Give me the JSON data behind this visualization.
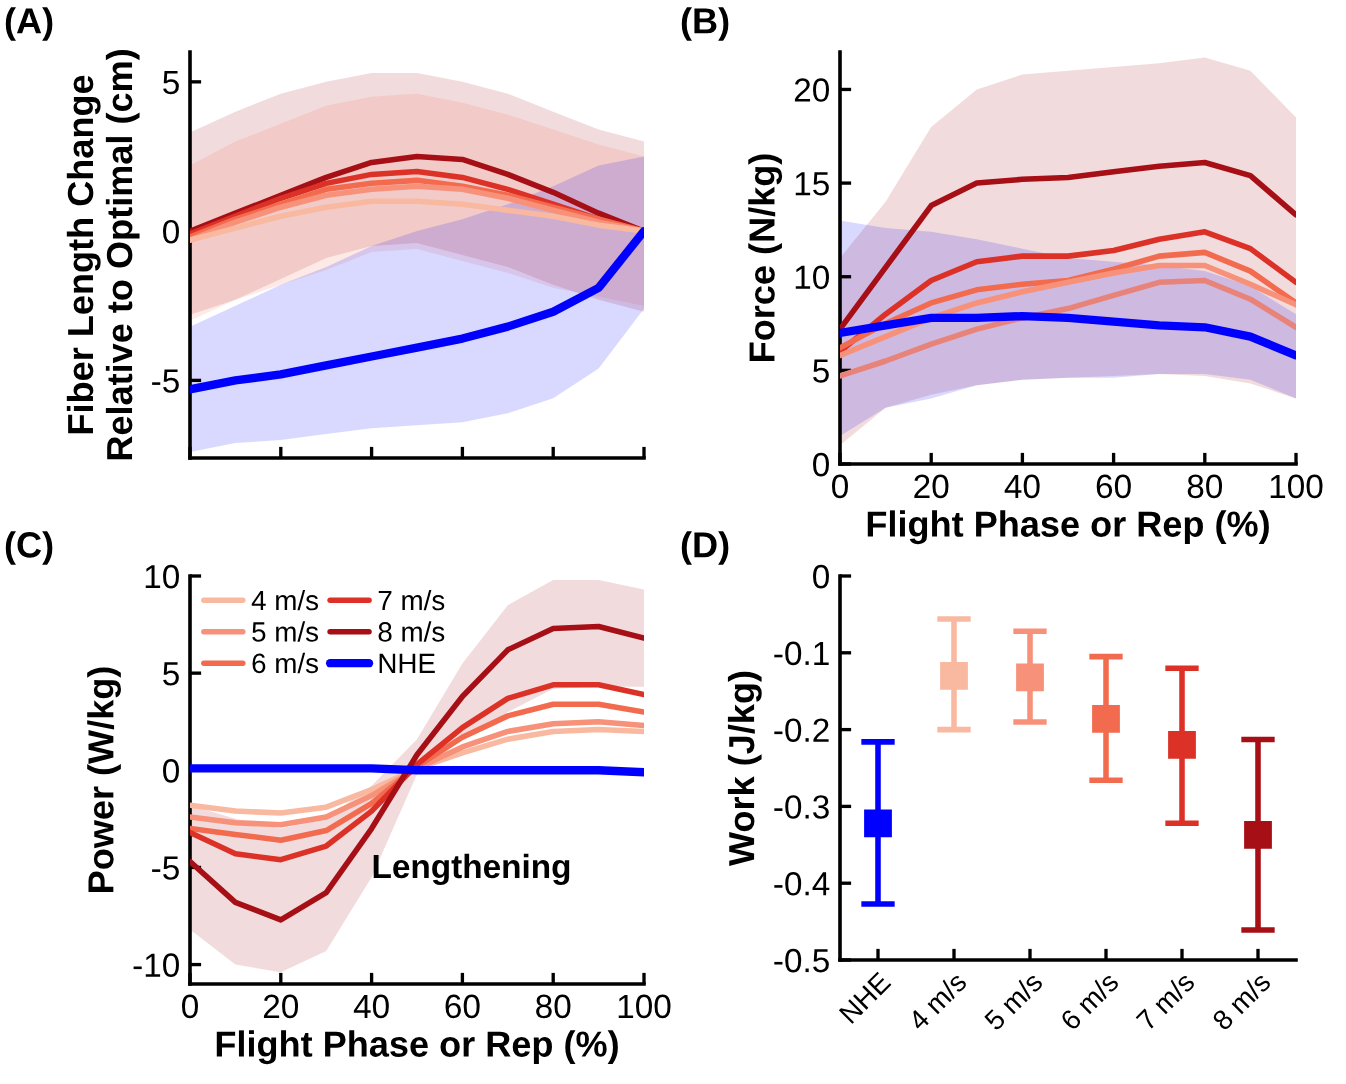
{
  "chart_data": [
    {
      "type": "line",
      "title": "(A)",
      "ylabel": "Fiber Length Change\nRelative to Optimal (cm)",
      "x": [
        0,
        10,
        20,
        30,
        40,
        50,
        60,
        70,
        80,
        90,
        100
      ],
      "xlim": [
        0,
        100
      ],
      "xticks": [
        {
          "value": 0,
          "label": null
        },
        {
          "value": 20,
          "label": null
        },
        {
          "value": 40,
          "label": null
        },
        {
          "value": 60,
          "label": null
        },
        {
          "value": 80,
          "label": null
        },
        {
          "value": 100,
          "label": null
        }
      ],
      "ylim": [
        -7.6,
        6
      ],
      "yticks": [
        -5,
        0,
        5
      ],
      "tick_labels": "y",
      "grid": false,
      "legend": false,
      "line_style": "solid",
      "marker": "none",
      "series": [
        {
          "color": "#a50f15",
          "values": [
            0,
            0.6,
            1.2,
            1.8,
            2.3,
            2.5,
            2.4,
            1.9,
            1.3,
            0.6,
            0
          ],
          "upper": [
            3.3,
            4.0,
            4.6,
            5.0,
            5.3,
            5.3,
            5.0,
            4.6,
            4.0,
            3.4,
            3.0
          ],
          "lower": [
            -2.8,
            -2.3,
            -1.6,
            -0.9,
            -0.5,
            -0.4,
            -0.8,
            -1.2,
            -1.8,
            -2.3,
            -2.7
          ]
        },
        {
          "color": "#dc3127",
          "values": [
            -0.1,
            0.5,
            1.1,
            1.6,
            1.9,
            2.0,
            1.8,
            1.4,
            0.9,
            0.4,
            0
          ]
        },
        {
          "color": "#f26b4f",
          "values": [
            -0.2,
            0.4,
            0.9,
            1.4,
            1.6,
            1.7,
            1.5,
            1.2,
            0.8,
            0.4,
            0
          ],
          "upper": [
            2.2,
            3.0,
            3.6,
            4.2,
            4.5,
            4.6,
            4.3,
            3.9,
            3.4,
            2.9,
            2.5
          ],
          "lower": [
            -3.0,
            -2.3,
            -1.8,
            -1.3,
            -0.7,
            -0.6,
            -1.0,
            -1.4,
            -1.9,
            -2.2,
            -2.5
          ]
        },
        {
          "color": "#f7917a",
          "values": [
            -0.3,
            0.3,
            0.8,
            1.2,
            1.4,
            1.5,
            1.4,
            1.1,
            0.7,
            0.3,
            0
          ]
        },
        {
          "color": "#f9b9a0",
          "values": [
            -0.3,
            0.1,
            0.5,
            0.8,
            1.0,
            1.0,
            0.9,
            0.7,
            0.5,
            0.2,
            0
          ]
        },
        {
          "color": "#0000ff",
          "values": [
            -5.3,
            -5.0,
            -4.8,
            -4.5,
            -4.2,
            -3.9,
            -3.6,
            -3.2,
            -2.7,
            -1.9,
            0
          ],
          "upper": [
            -3.2,
            -2.5,
            -1.8,
            -1.2,
            -0.5,
            0,
            0.4,
            0.9,
            1.5,
            2.2,
            2.5
          ],
          "lower": [
            -7.4,
            -7.1,
            -7.0,
            -6.8,
            -6.6,
            -6.5,
            -6.4,
            -6.1,
            -5.6,
            -4.6,
            -2.6
          ]
        }
      ]
    },
    {
      "type": "line",
      "title": "(B)",
      "xlabel": "Flight Phase or Rep (%)",
      "ylabel": "Force (N/kg)",
      "x": [
        0,
        10,
        20,
        30,
        40,
        50,
        60,
        70,
        80,
        90,
        100
      ],
      "xlim": [
        0,
        100
      ],
      "xticks": [
        0,
        20,
        40,
        60,
        80,
        100
      ],
      "ylim": [
        0,
        22
      ],
      "yticks": [
        0,
        5,
        10,
        15,
        20
      ],
      "grid": false,
      "legend": false,
      "line_style": "solid",
      "marker": "none",
      "series": [
        {
          "color": "#a50f15",
          "values": [
            7.2,
            10.5,
            13.8,
            15.0,
            15.2,
            15.3,
            15.6,
            15.9,
            16.1,
            15.4,
            13.3
          ],
          "upper": [
            11,
            14,
            18,
            20,
            20.8,
            21,
            21.2,
            21.4,
            21.7,
            21,
            18.5
          ],
          "lower": [
            1,
            3,
            3.7,
            4.2,
            4.5,
            4.6,
            4.7,
            4.8,
            4.7,
            4.3,
            3.5
          ]
        },
        {
          "color": "#dc3127",
          "values": [
            6.0,
            8.0,
            9.8,
            10.8,
            11.1,
            11.1,
            11.4,
            12.0,
            12.4,
            11.5,
            9.7
          ]
        },
        {
          "color": "#f26b4f",
          "values": [
            6.2,
            7.5,
            8.6,
            9.3,
            9.6,
            9.8,
            10.4,
            11.1,
            11.3,
            10.3,
            8.6
          ]
        },
        {
          "color": "#f7917a",
          "values": [
            5.8,
            6.8,
            7.8,
            8.6,
            9.2,
            9.7,
            10.2,
            10.6,
            10.6,
            9.6,
            8.5
          ]
        },
        {
          "color": "#e8837a",
          "values": [
            4.7,
            5.5,
            6.4,
            7.2,
            7.8,
            8.3,
            9.0,
            9.7,
            9.8,
            8.8,
            7.3
          ]
        },
        {
          "color": "#0000ff",
          "values": [
            7.0,
            7.4,
            7.8,
            7.8,
            7.9,
            7.8,
            7.6,
            7.4,
            7.3,
            6.8,
            5.8
          ],
          "upper": [
            13,
            12.6,
            12.4,
            12,
            11.5,
            11,
            10.8,
            10.6,
            10.3,
            9.5,
            8
          ],
          "lower": [
            1.5,
            3,
            3.5,
            4.2,
            4.5,
            4.6,
            4.6,
            4.8,
            4.8,
            4.5,
            3.5
          ]
        }
      ]
    },
    {
      "type": "line",
      "title": "(C)",
      "xlabel": "Flight Phase or Rep (%)",
      "ylabel": "Power (W/kg)",
      "annotations": [
        "Lengthening"
      ],
      "x": [
        0,
        10,
        20,
        30,
        40,
        50,
        60,
        70,
        80,
        90,
        100
      ],
      "xlim": [
        0,
        100
      ],
      "xticks": [
        0,
        20,
        40,
        60,
        80,
        100
      ],
      "ylim": [
        -11,
        10
      ],
      "yticks": [
        -10,
        -5,
        0,
        5,
        10
      ],
      "grid": false,
      "legend": "top left",
      "line_style": "solid",
      "marker": "none",
      "series": [
        {
          "name": "4 m/s",
          "color": "#f9b9a0",
          "values": [
            -1.8,
            -2.1,
            -2.2,
            -1.9,
            -1.0,
            0.1,
            0.9,
            1.6,
            2.0,
            2.1,
            2.0
          ]
        },
        {
          "name": "5 m/s",
          "color": "#f7917a",
          "values": [
            -2.4,
            -2.7,
            -2.8,
            -2.4,
            -1.3,
            0.1,
            1.2,
            2.0,
            2.4,
            2.5,
            2.3
          ]
        },
        {
          "name": "6 m/s",
          "color": "#f26b4f",
          "values": [
            -3.0,
            -3.3,
            -3.6,
            -3.1,
            -1.7,
            0.2,
            1.7,
            2.8,
            3.4,
            3.4,
            3.0
          ]
        },
        {
          "name": "7 m/s",
          "color": "#dc3127",
          "values": [
            -3.2,
            -4.3,
            -4.6,
            -3.9,
            -2.1,
            0.3,
            2.2,
            3.7,
            4.4,
            4.4,
            3.9
          ]
        },
        {
          "name": "8 m/s",
          "color": "#a50f15",
          "values": [
            -4.7,
            -6.8,
            -7.7,
            -6.3,
            -3.0,
            0.8,
            3.8,
            6.2,
            7.3,
            7.4,
            6.8
          ],
          "upper": [
            -1.8,
            -2.5,
            -3.0,
            -2.5,
            -0.8,
            1.6,
            5.5,
            8.5,
            9.8,
            9.8,
            9.3
          ],
          "lower": [
            -8.2,
            -10,
            -10.4,
            -9.3,
            -5.5,
            -0.2,
            1.6,
            3,
            4.2,
            4.3,
            4.3
          ]
        },
        {
          "name": "NHE",
          "color": "#0000ff",
          "values": [
            0.1,
            0.1,
            0.1,
            0.1,
            0.1,
            0,
            0,
            0,
            0,
            0,
            -0.1
          ]
        }
      ]
    },
    {
      "type": "scatter",
      "title": "(D)",
      "ylabel": "Work (J/kg)",
      "categories": [
        "NHE",
        "4 m/s",
        "5 m/s",
        "6 m/s",
        "7 m/s",
        "8 m/s"
      ],
      "ylim": [
        -0.5,
        0
      ],
      "yticks": [
        -0.5,
        -0.4,
        -0.3,
        -0.2,
        -0.1,
        0
      ],
      "grid": false,
      "legend": false,
      "marker": "square",
      "values": [
        -0.322,
        -0.13,
        -0.132,
        -0.186,
        -0.22,
        -0.337
      ],
      "errors": [
        [
          -0.427,
          -0.216
        ],
        [
          -0.2,
          -0.056
        ],
        [
          -0.19,
          -0.072
        ],
        [
          -0.266,
          -0.105
        ],
        [
          -0.322,
          -0.12
        ],
        [
          -0.461,
          -0.213
        ]
      ],
      "colors": [
        "#0000ff",
        "#f9b9a0",
        "#f7917a",
        "#f26b4f",
        "#dc3127",
        "#a50f15"
      ]
    }
  ]
}
